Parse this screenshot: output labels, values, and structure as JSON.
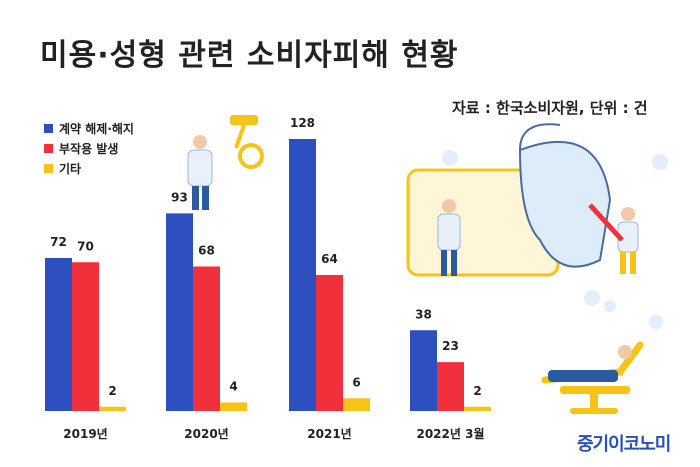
{
  "title": "미용·성형 관련 소비자피해 현황",
  "source": "자료 : 한국소비자원, 단위 : 건",
  "logo": "중기이코노미",
  "colors": {
    "blue": "#2d4fbf",
    "red": "#f0303a",
    "yellow": "#f6c416"
  },
  "chart_data": {
    "type": "bar",
    "categories": [
      "2019년",
      "2020년",
      "2021년",
      "2022년 3월"
    ],
    "series": [
      {
        "name": "계약 해제·해지",
        "values": [
          72,
          93,
          128,
          38
        ]
      },
      {
        "name": "부작용 발생",
        "values": [
          70,
          68,
          64,
          23
        ]
      },
      {
        "name": "기타",
        "values": [
          2,
          4,
          6,
          2
        ]
      }
    ],
    "title": "미용·성형 관련 소비자피해 현황",
    "xlabel": "",
    "ylabel": "",
    "ylim": [
      0,
      128
    ],
    "grid": false,
    "legend": "top-left"
  }
}
